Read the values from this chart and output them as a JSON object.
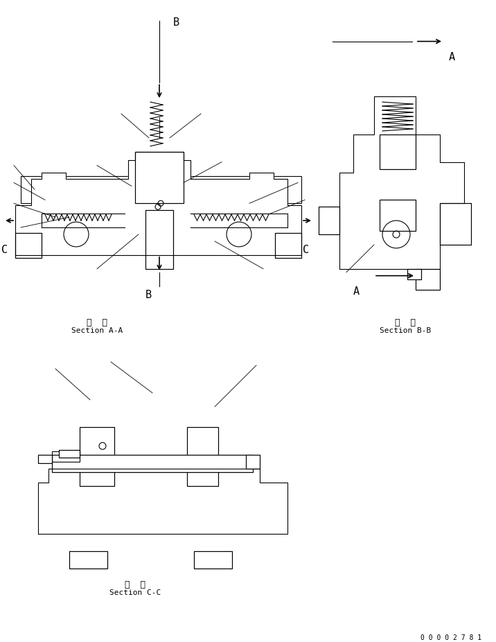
{
  "bg_color": "#ffffff",
  "line_color": "#000000",
  "fig_width": 7.16,
  "fig_height": 9.26,
  "dpi": 100,
  "section_aa_label": [
    "断  面",
    "Section A-A"
  ],
  "section_bb_label": [
    "断  面",
    "Section B-B"
  ],
  "section_cc_label": [
    "断  面",
    "Section C-C"
  ],
  "part_number": "0 0 0 0 2 7 8 1"
}
